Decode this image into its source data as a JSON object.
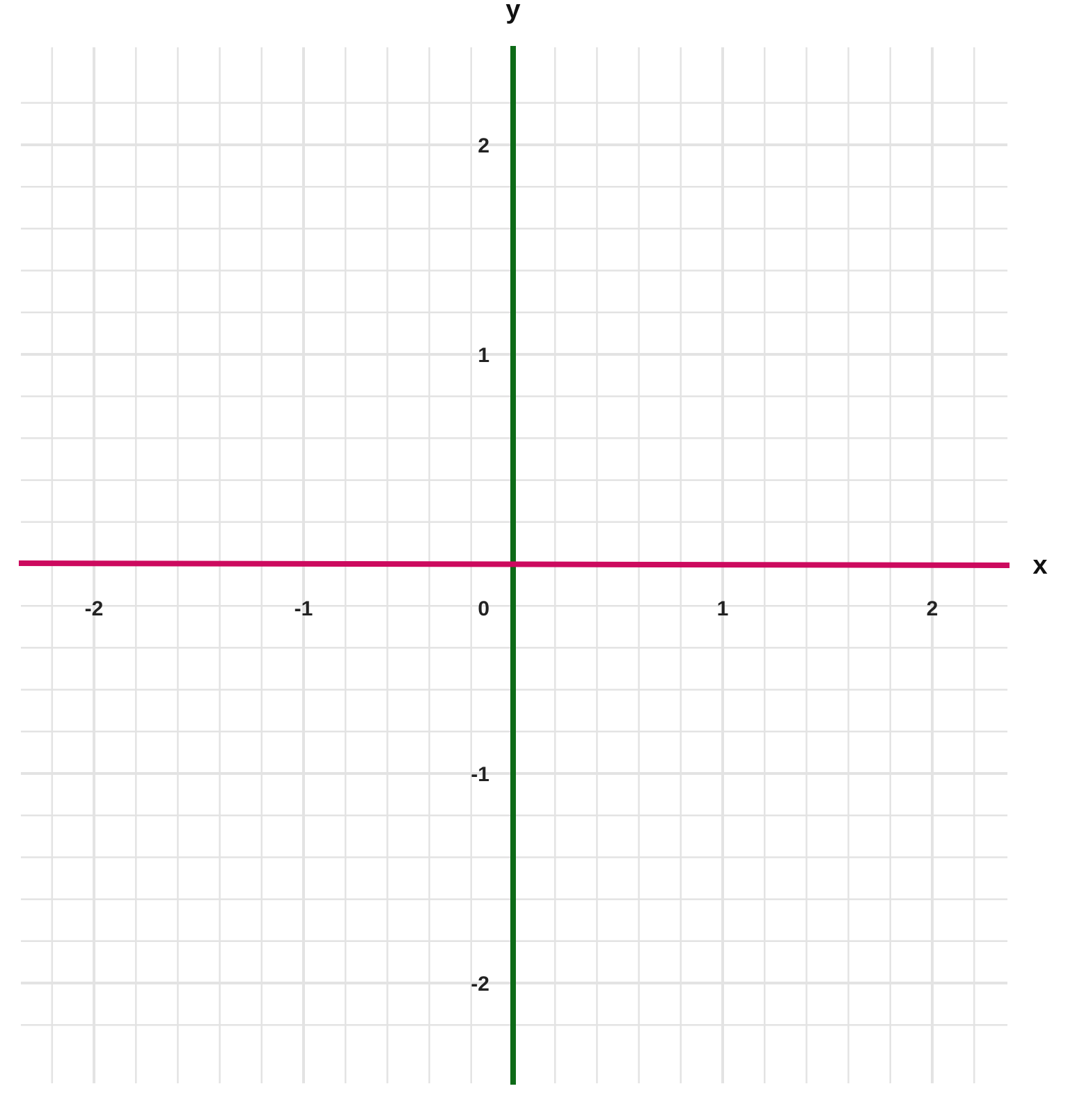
{
  "chart_data": {
    "type": "line",
    "title": "",
    "xlabel": "x",
    "ylabel": "y",
    "xlim": [
      -2.35,
      2.37
    ],
    "ylim": [
      -2.35,
      2.37
    ],
    "x_ticks": [
      {
        "value": -2,
        "label": "-2"
      },
      {
        "value": -1,
        "label": "-1"
      },
      {
        "value": 1,
        "label": "1"
      },
      {
        "value": 2,
        "label": "2"
      }
    ],
    "y_ticks": [
      {
        "value": 2,
        "label": "2"
      },
      {
        "value": 1,
        "label": "1"
      },
      {
        "value": -1,
        "label": "-1"
      },
      {
        "value": -2,
        "label": "-2"
      }
    ],
    "origin_label": "0",
    "grid": true,
    "minor_grid_step": 0.2,
    "major_grid_step": 1,
    "colors": {
      "x_axis": "#cc0a5e",
      "y_axis": "#0e6b18",
      "grid": "#e3e3e3"
    },
    "series": []
  }
}
